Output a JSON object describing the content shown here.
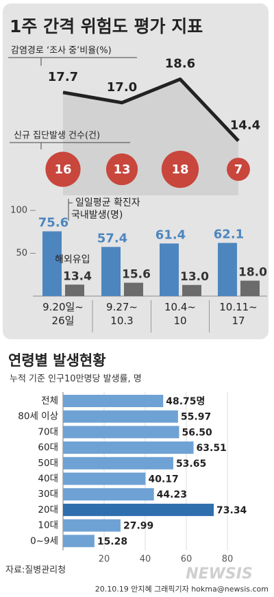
{
  "header": {
    "title": "1주 간격 위험도 평가 지표"
  },
  "chart_data": [
    {
      "type": "line",
      "title": "감염경로 ‘조사 중’비율(%)",
      "categories": [
        "9.20일~\n26일",
        "9.27~\n10.3",
        "10.4~\n10",
        "10.11~\n17"
      ],
      "values": [
        17.7,
        17.0,
        18.6,
        14.4
      ],
      "value_labels": [
        "17.7",
        "17.0",
        "18.6",
        "14.4"
      ],
      "color": "#222222",
      "ylim": [
        14,
        19
      ]
    },
    {
      "type": "bubble",
      "title": "신규 집단발생 건수(건)",
      "values": [
        16,
        13,
        18,
        7
      ],
      "color": "#c8463c"
    },
    {
      "type": "bar",
      "annotation": "일일평균 확진자",
      "ylim": [
        0,
        100
      ],
      "yticks": [
        50,
        100
      ],
      "series": [
        {
          "name": "국내발생(명)",
          "color": "#4d86bf",
          "values": [
            75.6,
            57.4,
            61.4,
            62.1
          ],
          "value_labels": [
            "75.6",
            "57.4",
            "61.4",
            "62.1"
          ]
        },
        {
          "name": "해외유입",
          "color": "#6b6b6b",
          "values": [
            13.4,
            15.6,
            13.0,
            18.0
          ],
          "value_labels": [
            "13.4",
            "15.6",
            "13.0",
            "18.0"
          ]
        }
      ]
    },
    {
      "type": "hbar",
      "title": "연령별 발생현황",
      "subtitle": "누적 기준 인구10만명당 발생률, 명",
      "categories": [
        "전체",
        "80세 이상",
        "70대",
        "60대",
        "50대",
        "40대",
        "30대",
        "20대",
        "10대",
        "0~9세"
      ],
      "values": [
        48.75,
        55.97,
        56.5,
        63.51,
        53.65,
        40.17,
        44.23,
        73.34,
        27.99,
        15.28
      ],
      "value_labels": [
        "48.75명",
        "55.97",
        "56.50",
        "63.51",
        "53.65",
        "40.17",
        "44.23",
        "73.34",
        "27.99",
        "15.28"
      ],
      "color": "#6fa2d4",
      "highlight_color": "#2f6fae",
      "highlight": "20대",
      "xlim": [
        0,
        100
      ],
      "xticks": [
        20,
        40,
        60,
        80
      ]
    }
  ],
  "source": "자료:질병관리청",
  "credit": "20.10.19 안지혜 그래픽기자 hokma@newsis.com",
  "watermark": "NEWSIS"
}
